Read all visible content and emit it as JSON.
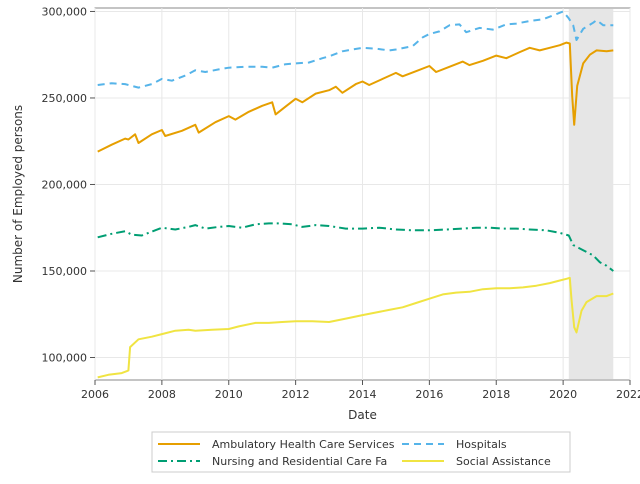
{
  "chart_data": {
    "type": "line",
    "xlabel": "Date",
    "ylabel": "Number of Employed persons",
    "xlim": [
      2006,
      2022
    ],
    "ylim": [
      87000,
      302000
    ],
    "x_ticks": [
      {
        "value": 2006,
        "label": "2006"
      },
      {
        "value": 2008,
        "label": "2008"
      },
      {
        "value": 2010,
        "label": "2010"
      },
      {
        "value": 2012,
        "label": "2012"
      },
      {
        "value": 2014,
        "label": "2014"
      },
      {
        "value": 2016,
        "label": "2016"
      },
      {
        "value": 2018,
        "label": "2018"
      },
      {
        "value": 2020,
        "label": "2020"
      },
      {
        "value": 2022,
        "label": "2022"
      }
    ],
    "y_ticks": [
      {
        "value": 100000,
        "label": "100,000"
      },
      {
        "value": 150000,
        "label": "150,000"
      },
      {
        "value": 200000,
        "label": "200,000"
      },
      {
        "value": 250000,
        "label": "250,000"
      },
      {
        "value": 300000,
        "label": "300,000"
      }
    ],
    "grid": true,
    "legend_position": "bottom",
    "shaded_region": {
      "from": 2020.17,
      "to": 2021.5,
      "color": "#e6e6e6"
    },
    "series": [
      {
        "name": "Ambulatory Health Care Services",
        "color": "#e69f00",
        "dash": "solid",
        "points": [
          [
            2006.08,
            219000
          ],
          [
            2006.5,
            223000
          ],
          [
            2006.9,
            226500
          ],
          [
            2007.0,
            226000
          ],
          [
            2007.2,
            229000
          ],
          [
            2007.3,
            224000
          ],
          [
            2007.7,
            229000
          ],
          [
            2008.0,
            231500
          ],
          [
            2008.1,
            228000
          ],
          [
            2008.6,
            231000
          ],
          [
            2009.0,
            234500
          ],
          [
            2009.1,
            230000
          ],
          [
            2009.6,
            236000
          ],
          [
            2010.0,
            239500
          ],
          [
            2010.2,
            237500
          ],
          [
            2010.6,
            242000
          ],
          [
            2011.0,
            245500
          ],
          [
            2011.3,
            247500
          ],
          [
            2011.4,
            240500
          ],
          [
            2011.7,
            245000
          ],
          [
            2012.0,
            249500
          ],
          [
            2012.2,
            247500
          ],
          [
            2012.6,
            252500
          ],
          [
            2013.0,
            254500
          ],
          [
            2013.2,
            256500
          ],
          [
            2013.4,
            253000
          ],
          [
            2013.8,
            258000
          ],
          [
            2014.0,
            259500
          ],
          [
            2014.2,
            257500
          ],
          [
            2014.6,
            261000
          ],
          [
            2015.0,
            264500
          ],
          [
            2015.2,
            262500
          ],
          [
            2015.6,
            265500
          ],
          [
            2016.0,
            268500
          ],
          [
            2016.2,
            265000
          ],
          [
            2016.6,
            268000
          ],
          [
            2017.0,
            271000
          ],
          [
            2017.2,
            269000
          ],
          [
            2017.6,
            271500
          ],
          [
            2018.0,
            274500
          ],
          [
            2018.3,
            273000
          ],
          [
            2018.7,
            276500
          ],
          [
            2019.0,
            279000
          ],
          [
            2019.3,
            277500
          ],
          [
            2019.6,
            279000
          ],
          [
            2019.9,
            280500
          ],
          [
            2020.1,
            282000
          ],
          [
            2020.2,
            281500
          ],
          [
            2020.27,
            251000
          ],
          [
            2020.33,
            234500
          ],
          [
            2020.42,
            257000
          ],
          [
            2020.6,
            270000
          ],
          [
            2020.8,
            275000
          ],
          [
            2021.0,
            277500
          ],
          [
            2021.3,
            277000
          ],
          [
            2021.5,
            277500
          ]
        ]
      },
      {
        "name": "Hospitals",
        "color": "#56b4e9",
        "dash": "7 5",
        "points": [
          [
            2006.08,
            257500
          ],
          [
            2006.5,
            258500
          ],
          [
            2006.9,
            258000
          ],
          [
            2007.3,
            256000
          ],
          [
            2007.7,
            258000
          ],
          [
            2008.0,
            261000
          ],
          [
            2008.3,
            260000
          ],
          [
            2008.7,
            263000
          ],
          [
            2009.0,
            266000
          ],
          [
            2009.3,
            265000
          ],
          [
            2009.7,
            266500
          ],
          [
            2010.0,
            267500
          ],
          [
            2010.5,
            268000
          ],
          [
            2011.0,
            268000
          ],
          [
            2011.3,
            267500
          ],
          [
            2011.7,
            269500
          ],
          [
            2012.0,
            270000
          ],
          [
            2012.4,
            270500
          ],
          [
            2012.8,
            273000
          ],
          [
            2013.0,
            274000
          ],
          [
            2013.4,
            277000
          ],
          [
            2013.7,
            278000
          ],
          [
            2014.0,
            279000
          ],
          [
            2014.4,
            278500
          ],
          [
            2014.8,
            277500
          ],
          [
            2015.0,
            278000
          ],
          [
            2015.5,
            280000
          ],
          [
            2015.8,
            285000
          ],
          [
            2016.0,
            287000
          ],
          [
            2016.3,
            288500
          ],
          [
            2016.6,
            292000
          ],
          [
            2016.9,
            292500
          ],
          [
            2017.1,
            288000
          ],
          [
            2017.5,
            290500
          ],
          [
            2017.9,
            289500
          ],
          [
            2018.3,
            292500
          ],
          [
            2018.6,
            293000
          ],
          [
            2019.0,
            294500
          ],
          [
            2019.4,
            295500
          ],
          [
            2019.8,
            298500
          ],
          [
            2020.0,
            300000
          ],
          [
            2020.17,
            296000
          ],
          [
            2020.3,
            292000
          ],
          [
            2020.4,
            283500
          ],
          [
            2020.6,
            290000
          ],
          [
            2020.9,
            293500
          ],
          [
            2021.0,
            295000
          ],
          [
            2021.2,
            292000
          ],
          [
            2021.5,
            292000
          ]
        ]
      },
      {
        "name": "Nursing and Residential Care Fa",
        "color": "#009e73",
        "dash": "9 4 2 4",
        "points": [
          [
            2006.08,
            169500
          ],
          [
            2006.5,
            171500
          ],
          [
            2006.9,
            173000
          ],
          [
            2007.1,
            171000
          ],
          [
            2007.4,
            170500
          ],
          [
            2007.8,
            173500
          ],
          [
            2008.0,
            175000
          ],
          [
            2008.4,
            174000
          ],
          [
            2008.8,
            175500
          ],
          [
            2009.0,
            176500
          ],
          [
            2009.3,
            174500
          ],
          [
            2009.7,
            175500
          ],
          [
            2010.0,
            176000
          ],
          [
            2010.4,
            175000
          ],
          [
            2010.8,
            177000
          ],
          [
            2011.2,
            177500
          ],
          [
            2011.5,
            177500
          ],
          [
            2011.9,
            177000
          ],
          [
            2012.2,
            175500
          ],
          [
            2012.6,
            176500
          ],
          [
            2013.0,
            176000
          ],
          [
            2013.5,
            174500
          ],
          [
            2014.0,
            174500
          ],
          [
            2014.5,
            175000
          ],
          [
            2015.0,
            174000
          ],
          [
            2015.5,
            173500
          ],
          [
            2016.0,
            173500
          ],
          [
            2016.5,
            174000
          ],
          [
            2017.0,
            174500
          ],
          [
            2017.4,
            175000
          ],
          [
            2017.8,
            175000
          ],
          [
            2018.2,
            174500
          ],
          [
            2018.6,
            174500
          ],
          [
            2019.0,
            174000
          ],
          [
            2019.5,
            173500
          ],
          [
            2019.9,
            172000
          ],
          [
            2020.17,
            170500
          ],
          [
            2020.3,
            165000
          ],
          [
            2020.6,
            162000
          ],
          [
            2020.9,
            159000
          ],
          [
            2021.1,
            155000
          ],
          [
            2021.3,
            153000
          ],
          [
            2021.5,
            150000
          ]
        ]
      },
      {
        "name": "Social Assistance",
        "color": "#f0e442",
        "dash": "solid",
        "points": [
          [
            2006.08,
            88500
          ],
          [
            2006.4,
            90000
          ],
          [
            2006.8,
            91000
          ],
          [
            2007.0,
            92500
          ],
          [
            2007.05,
            106000
          ],
          [
            2007.3,
            110500
          ],
          [
            2007.7,
            112000
          ],
          [
            2008.0,
            113500
          ],
          [
            2008.4,
            115500
          ],
          [
            2008.8,
            116000
          ],
          [
            2009.0,
            115500
          ],
          [
            2009.5,
            116000
          ],
          [
            2010.0,
            116500
          ],
          [
            2010.3,
            118000
          ],
          [
            2010.8,
            120000
          ],
          [
            2011.2,
            120000
          ],
          [
            2011.6,
            120500
          ],
          [
            2012.0,
            121000
          ],
          [
            2012.5,
            121000
          ],
          [
            2013.0,
            120500
          ],
          [
            2013.5,
            122500
          ],
          [
            2014.0,
            124500
          ],
          [
            2014.4,
            126000
          ],
          [
            2014.8,
            127500
          ],
          [
            2015.2,
            129000
          ],
          [
            2015.6,
            131500
          ],
          [
            2016.0,
            134000
          ],
          [
            2016.4,
            136500
          ],
          [
            2016.8,
            137500
          ],
          [
            2017.2,
            138000
          ],
          [
            2017.6,
            139500
          ],
          [
            2018.0,
            140000
          ],
          [
            2018.4,
            140000
          ],
          [
            2018.8,
            140500
          ],
          [
            2019.2,
            141500
          ],
          [
            2019.6,
            143000
          ],
          [
            2019.9,
            144500
          ],
          [
            2020.1,
            145500
          ],
          [
            2020.2,
            146000
          ],
          [
            2020.25,
            133500
          ],
          [
            2020.33,
            117500
          ],
          [
            2020.4,
            114500
          ],
          [
            2020.55,
            127000
          ],
          [
            2020.7,
            132000
          ],
          [
            2021.0,
            135500
          ],
          [
            2021.3,
            135500
          ],
          [
            2021.5,
            137000
          ]
        ]
      }
    ]
  }
}
